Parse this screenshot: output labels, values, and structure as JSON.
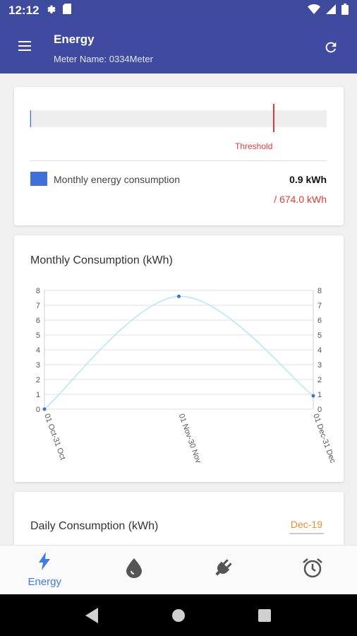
{
  "status_bar": {
    "time": "12:12",
    "icons": [
      "gear-icon",
      "sd-card-icon",
      "wifi-icon",
      "signal-icon",
      "battery-icon"
    ]
  },
  "app_bar": {
    "title": "Energy",
    "subtitle": "Meter Name: 0334Meter",
    "menu_icon": "menu-icon",
    "refresh_icon": "refresh-icon"
  },
  "summary_card": {
    "threshold_label": "Threshold",
    "legend_label": "Monthly energy consumption",
    "current_value": "0.9 kWh",
    "threshold_value": "/ 674.0 kWh",
    "progress_fraction": 0.0013,
    "threshold_fraction": 0.82,
    "colors": {
      "fill": "#3f6fd8",
      "threshold": "#e53935"
    }
  },
  "monthly_card": {
    "title": "Monthly Consumption (kWh)"
  },
  "chart_data": {
    "type": "line",
    "title": "Monthly Consumption (kWh)",
    "categories": [
      "01 Oct-31 Oct",
      "01 Nov-30 Nov",
      "01 Dec-31 Dec"
    ],
    "series": [
      {
        "values": [
          0,
          7.6,
          0.9
        ]
      }
    ],
    "ylim": [
      0,
      8
    ],
    "y_ticks": [
      "0",
      "1",
      "2",
      "3",
      "4",
      "5",
      "6",
      "7",
      "8"
    ],
    "grid": true,
    "dual_y_axis": true,
    "colors": {
      "line": "#b3e5fc",
      "point": "#3f6fd8",
      "grid": "#e0e0e0"
    }
  },
  "daily_card": {
    "title": "Daily Consumption (kWh)",
    "month_value": "Dec-19"
  },
  "bottom_nav": {
    "items": [
      {
        "icon": "lightning-icon",
        "label": "Energy",
        "active": true
      },
      {
        "icon": "water-drop-icon",
        "label": "",
        "active": false
      },
      {
        "icon": "plug-icon",
        "label": "",
        "active": false
      },
      {
        "icon": "alarm-clock-icon",
        "label": "",
        "active": false
      }
    ],
    "colors": {
      "active": "#3f7be8",
      "inactive": "#555555"
    }
  },
  "system_nav": {
    "icons": [
      "back-icon",
      "home-icon",
      "recents-icon"
    ]
  }
}
